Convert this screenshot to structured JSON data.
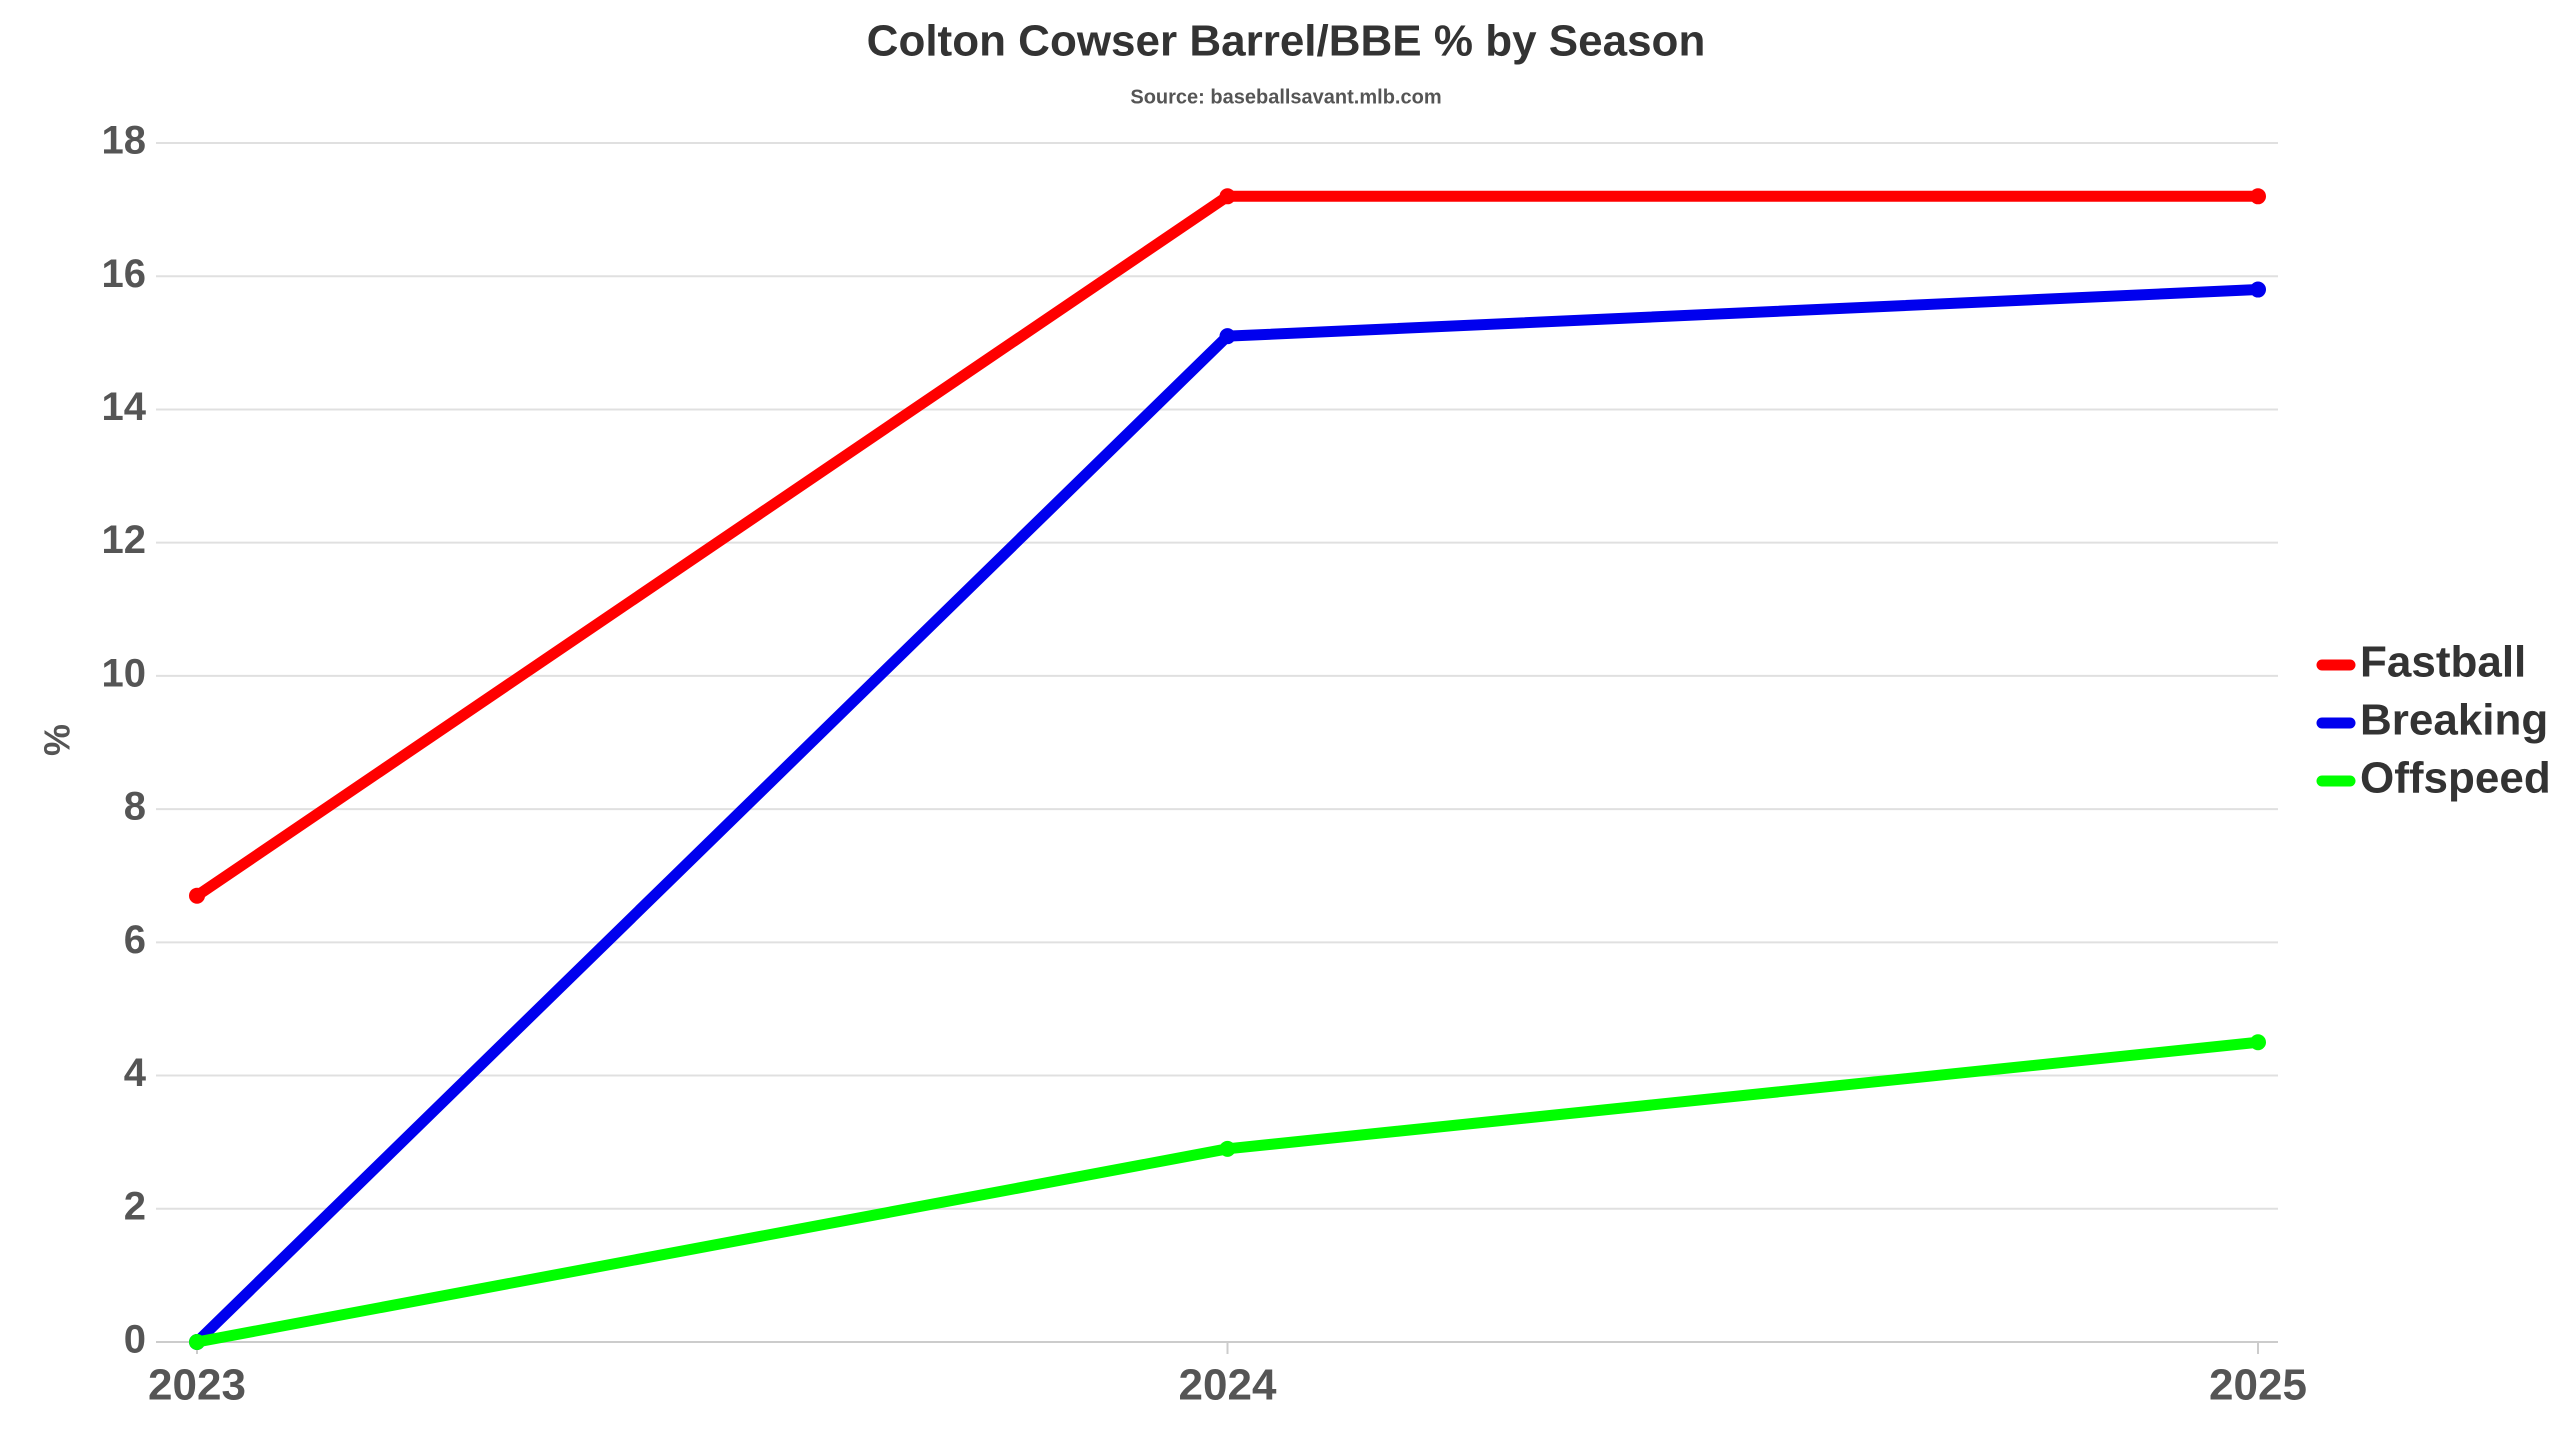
{
  "chart_data": {
    "type": "line",
    "title": "Colton Cowser Barrel/BBE % by Season",
    "subtitle": "Source: baseballsavant.mlb.com",
    "y_label": "%",
    "categories": [
      "2023",
      "2024",
      "2025"
    ],
    "series": [
      {
        "name": "Fastball",
        "color": "#ff0000",
        "values": [
          6.7,
          17.2,
          17.2
        ]
      },
      {
        "name": "Breaking",
        "color": "#0000ee",
        "values": [
          0,
          15.1,
          15.8
        ]
      },
      {
        "name": "Offspeed",
        "color": "#00ff00",
        "values": [
          0,
          2.9,
          4.5
        ]
      }
    ],
    "ylim": [
      0,
      18
    ],
    "yticks": [
      0,
      2,
      4,
      6,
      8,
      10,
      12,
      14,
      16,
      18
    ],
    "grid": true,
    "legend": "right"
  }
}
